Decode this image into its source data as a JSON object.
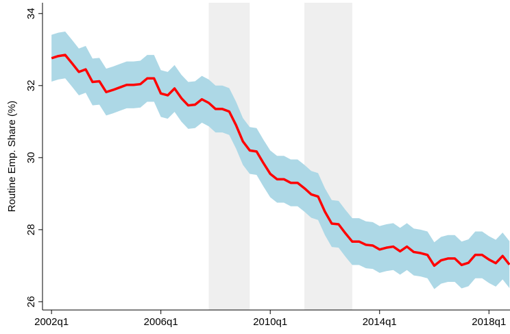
{
  "chart_data": {
    "type": "line",
    "y_label": "Routine Emp. Share (%)",
    "x": [
      2002,
      2002.25,
      2002.5,
      2002.75,
      2003,
      2003.25,
      2003.5,
      2003.75,
      2004,
      2004.25,
      2004.5,
      2004.75,
      2005,
      2005.25,
      2005.5,
      2005.75,
      2006,
      2006.25,
      2006.5,
      2006.75,
      2007,
      2007.25,
      2007.5,
      2007.75,
      2008,
      2008.25,
      2008.5,
      2008.75,
      2009,
      2009.25,
      2009.5,
      2009.75,
      2010,
      2010.25,
      2010.5,
      2010.75,
      2011,
      2011.25,
      2011.5,
      2011.75,
      2012,
      2012.25,
      2012.5,
      2012.75,
      2013,
      2013.25,
      2013.5,
      2013.75,
      2014,
      2014.25,
      2014.5,
      2014.75,
      2015,
      2015.25,
      2015.5,
      2015.75,
      2016,
      2016.25,
      2016.5,
      2016.75,
      2017,
      2017.25,
      2017.5,
      2017.75,
      2018,
      2018.25,
      2018.5,
      2018.75
    ],
    "series": [
      {
        "color": "#ff0000",
        "values": [
          32.76,
          32.82,
          32.85,
          32.62,
          32.38,
          32.45,
          32.1,
          32.12,
          31.82,
          31.88,
          31.95,
          32.02,
          32.02,
          32.04,
          32.2,
          32.2,
          31.78,
          31.73,
          31.92,
          31.65,
          31.45,
          31.47,
          31.62,
          31.52,
          31.35,
          31.35,
          31.28,
          30.9,
          30.45,
          30.2,
          30.17,
          29.85,
          29.55,
          29.4,
          29.4,
          29.3,
          29.3,
          29.15,
          28.98,
          28.92,
          28.5,
          28.17,
          28.15,
          27.9,
          27.67,
          27.67,
          27.58,
          27.56,
          27.45,
          27.5,
          27.53,
          27.4,
          27.53,
          27.38,
          27.35,
          27.3,
          27.0,
          27.15,
          27.2,
          27.2,
          27.02,
          27.08,
          27.3,
          27.3,
          27.17,
          27.07,
          27.27,
          27.03
        ]
      }
    ],
    "band": {
      "color": "#add8e6",
      "upper": [
        33.41,
        33.47,
        33.5,
        33.27,
        33.03,
        33.1,
        32.75,
        32.77,
        32.47,
        32.53,
        32.6,
        32.67,
        32.67,
        32.69,
        32.85,
        32.85,
        32.43,
        32.38,
        32.57,
        32.3,
        32.1,
        32.12,
        32.27,
        32.17,
        32.0,
        32.0,
        31.93,
        31.55,
        31.1,
        30.85,
        30.82,
        30.5,
        30.2,
        30.05,
        30.05,
        29.95,
        29.95,
        29.8,
        29.63,
        29.57,
        29.15,
        28.82,
        28.8,
        28.55,
        28.32,
        28.32,
        28.23,
        28.21,
        28.1,
        28.15,
        28.18,
        28.05,
        28.18,
        28.03,
        28.0,
        27.95,
        27.65,
        27.8,
        27.85,
        27.85,
        27.67,
        27.73,
        27.95,
        27.95,
        27.82,
        27.72,
        27.92,
        27.68
      ],
      "lower": [
        32.11,
        32.17,
        32.2,
        31.97,
        31.73,
        31.8,
        31.45,
        31.47,
        31.17,
        31.23,
        31.3,
        31.37,
        31.37,
        31.39,
        31.55,
        31.55,
        31.13,
        31.08,
        31.27,
        31.0,
        30.8,
        30.82,
        30.97,
        30.87,
        30.7,
        30.7,
        30.63,
        30.25,
        29.8,
        29.55,
        29.52,
        29.2,
        28.9,
        28.75,
        28.75,
        28.65,
        28.65,
        28.5,
        28.33,
        28.27,
        27.85,
        27.52,
        27.5,
        27.25,
        27.02,
        27.02,
        26.93,
        26.91,
        26.8,
        26.85,
        26.88,
        26.75,
        26.88,
        26.73,
        26.7,
        26.65,
        26.35,
        26.5,
        26.55,
        26.55,
        26.37,
        26.43,
        26.65,
        26.65,
        26.52,
        26.42,
        26.62,
        26.38
      ]
    },
    "shaded_regions": {
      "color": "#efefef",
      "ranges": [
        [
          2007.75,
          2009.25
        ],
        [
          2011.25,
          2013.0
        ]
      ]
    },
    "xlim": [
      2001.67,
      2018.77
    ],
    "ylim": [
      25.77,
      34.3
    ],
    "xticks": [
      {
        "value": 2002,
        "label": "2002q1"
      },
      {
        "value": 2006,
        "label": "2006q1"
      },
      {
        "value": 2010,
        "label": "2010q1"
      },
      {
        "value": 2014,
        "label": "2014q1"
      },
      {
        "value": 2018,
        "label": "2018q1"
      }
    ],
    "yticks": [
      26,
      28,
      30,
      32,
      34
    ]
  }
}
